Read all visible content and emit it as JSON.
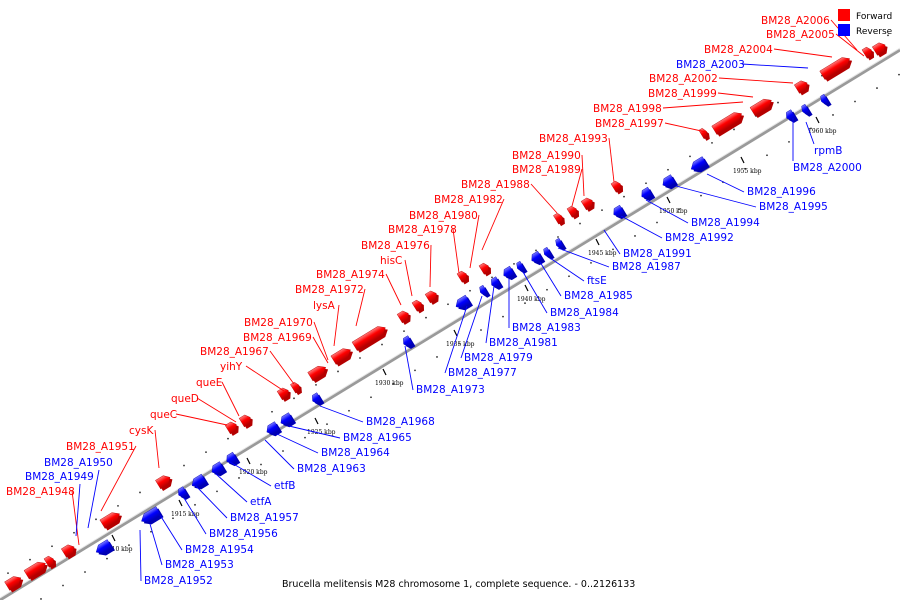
{
  "caption": "Brucella melitensis M28 chromosome 1, complete sequence. - 0..2126133",
  "legend": [
    {
      "label": "Forward",
      "color": "#ff0000"
    },
    {
      "label": "Reverse",
      "color": "#0000ff"
    }
  ],
  "colors": {
    "forward": "#ff0000",
    "reverse": "#0000ff",
    "backbone": "#a0a0a0"
  },
  "kbp_ticks": [
    "1910 kbp",
    "1915 kbp",
    "1920 kbp",
    "1925 kbp",
    "1930 kbp",
    "1935 kbp",
    "1940 kbp",
    "1945 kbp",
    "1950 kbp",
    "1955 kbp",
    "1960 kbp"
  ],
  "forward_labels": [
    "BM28_A2006",
    "BM28_A2005",
    "BM28_A2004",
    "BM28_A2002",
    "BM28_A1999",
    "BM28_A1998",
    "BM28_A1997",
    "BM28_A1993",
    "BM28_A1990",
    "BM28_A1989",
    "BM28_A1988",
    "BM28_A1982",
    "BM28_A1980",
    "BM28_A1978",
    "BM28_A1976",
    "hisC",
    "BM28_A1974",
    "BM28_A1972",
    "lysA",
    "BM28_A1970",
    "BM28_A1969",
    "BM28_A1967",
    "yihY",
    "queE",
    "queD",
    "queC",
    "cysK",
    "BM28_A1951",
    "BM28_A1948"
  ],
  "reverse_labels": [
    "BM28_A2003",
    "rpmB",
    "BM28_A2000",
    "BM28_A1996",
    "BM28_A1995",
    "BM28_A1994",
    "BM28_A1992",
    "BM28_A1991",
    "BM28_A1987",
    "ftsE",
    "BM28_A1985",
    "BM28_A1984",
    "BM28_A1983",
    "BM28_A1981",
    "BM28_A1979",
    "BM28_A1977",
    "BM28_A1973",
    "BM28_A1968",
    "BM28_A1965",
    "BM28_A1964",
    "BM28_A1963",
    "etfB",
    "etfA",
    "BM28_A1957",
    "BM28_A1956",
    "BM28_A1954",
    "BM28_A1953",
    "BM28_A1952",
    "BM28_A1950",
    "BM28_A1949"
  ]
}
